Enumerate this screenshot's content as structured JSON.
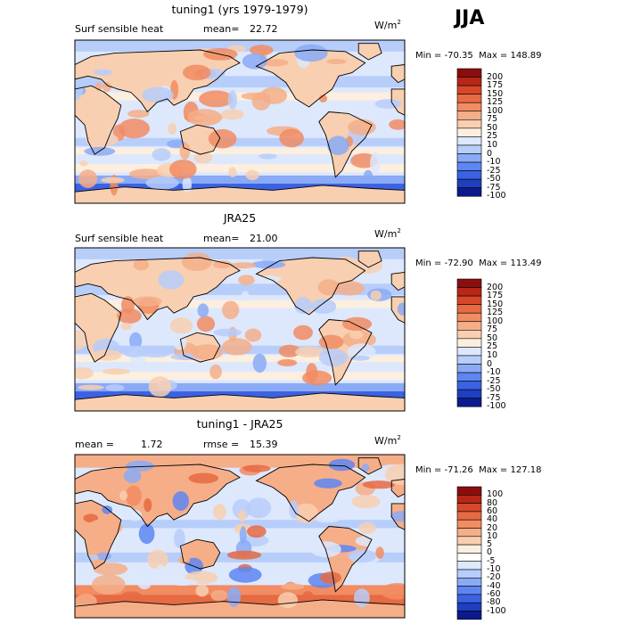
{
  "season": "JJA",
  "colors": {
    "abs_scale": [
      "#0b1a8c",
      "#1f3fc0",
      "#3b62e3",
      "#5e86f2",
      "#8aaaf6",
      "#b7cdfa",
      "#dde8fd",
      "#fcefdf",
      "#f8cfb0",
      "#f5ae88",
      "#f18c63",
      "#e66a42",
      "#d9472a",
      "#b82617",
      "#8c0d0d"
    ],
    "diff_scale": [
      "#0b1a8c",
      "#1f3fc0",
      "#3b62e3",
      "#5e86f2",
      "#8aaaf6",
      "#b7cdfa",
      "#dde8fd",
      "#ffffff",
      "#fcefdf",
      "#f8cfb0",
      "#f5ae88",
      "#f18c63",
      "#e66a42",
      "#d9472a",
      "#b82617",
      "#8c0d0d"
    ]
  },
  "chart_data": [
    {
      "type": "heatmap",
      "title": "tuning1 (yrs 1979-1979)",
      "variable": "Surf sensible heat",
      "stat_label": "mean=",
      "stat_value": "22.72",
      "units": "W/m",
      "units_sup": "2",
      "min_label": "Min = -70.35",
      "max_label": "Max = 148.89",
      "min": -70.35,
      "max": 148.89,
      "mean": 22.72,
      "levels": [
        "200",
        "175",
        "150",
        "125",
        "100",
        "75",
        "50",
        "25",
        "10",
        "0",
        "-10",
        "-25",
        "-50",
        "-75",
        "-100"
      ]
    },
    {
      "type": "heatmap",
      "title": "JRA25",
      "variable": "Surf sensible heat",
      "stat_label": "mean=",
      "stat_value": "21.00",
      "units": "W/m",
      "units_sup": "2",
      "min_label": "Min = -72.90",
      "max_label": "Max = 113.49",
      "min": -72.9,
      "max": 113.49,
      "mean": 21.0,
      "levels": [
        "200",
        "175",
        "150",
        "125",
        "100",
        "75",
        "50",
        "25",
        "10",
        "0",
        "-10",
        "-25",
        "-50",
        "-75",
        "-100"
      ]
    },
    {
      "type": "heatmap",
      "title": "tuning1 - JRA25",
      "stat_label": "mean =",
      "stat_value": "1.72",
      "stat2_label": "rmse =",
      "stat2_value": "15.39",
      "units": "W/m",
      "units_sup": "2",
      "min_label": "Min = -71.26",
      "max_label": "Max = 127.18",
      "min": -71.26,
      "max": 127.18,
      "mean": 1.72,
      "rmse": 15.39,
      "levels": [
        "100",
        "80",
        "60",
        "40",
        "20",
        "10",
        "5",
        "0",
        "-5",
        "-10",
        "-20",
        "-40",
        "-60",
        "-80",
        "-100"
      ]
    }
  ]
}
